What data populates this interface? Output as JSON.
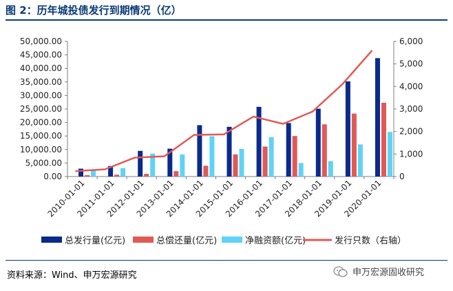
{
  "header": {
    "title": "图 2：历年城投债发行到期情况（亿）"
  },
  "footer": {
    "source": "资料来源：Wind、申万宏源研究",
    "watermark": "申万宏源固收研究"
  },
  "colors": {
    "title": "#0a3a78",
    "issue": "#0a2a8c",
    "repay": "#e05a55",
    "net": "#5fd3f6",
    "count": "#e05a55"
  },
  "chart_data": {
    "type": "bar",
    "categories": [
      "2010-01-01",
      "2011-01-01",
      "2012-01-01",
      "2013-01-01",
      "2014-01-01",
      "2015-01-01",
      "2016-01-01",
      "2017-01-01",
      "2018-01-01",
      "2019-01-01",
      "2020-01-01"
    ],
    "series": [
      {
        "name": "总发行量(亿元)",
        "type": "bar",
        "axis": "left",
        "values": [
          2900,
          3900,
          9500,
          10300,
          19000,
          18400,
          25800,
          19800,
          25100,
          35200,
          43800
        ]
      },
      {
        "name": "总偿还量(亿元)",
        "type": "bar",
        "axis": "left",
        "values": [
          500,
          700,
          1000,
          2000,
          4000,
          8200,
          11100,
          15000,
          19300,
          23300,
          27300
        ]
      },
      {
        "name": "净融资额(亿元)",
        "type": "bar",
        "axis": "left",
        "values": [
          2300,
          3100,
          8500,
          8200,
          14900,
          10200,
          14600,
          5000,
          5700,
          11900,
          16500
        ]
      },
      {
        "name": "发行只数（右轴）",
        "type": "line",
        "axis": "right",
        "values": [
          240,
          320,
          840,
          900,
          1850,
          1870,
          2660,
          2340,
          2890,
          4100,
          5600
        ]
      }
    ],
    "left_axis": {
      "ylim": [
        0,
        50000
      ],
      "ticks": [
        "0.00",
        "5,000.00",
        "10,000.00",
        "15,000.00",
        "20,000.00",
        "25,000.00",
        "30,000.00",
        "35,000.00",
        "40,000.00",
        "45,000.00",
        "50,000.00"
      ]
    },
    "right_axis": {
      "ylim": [
        0,
        6000
      ],
      "ticks": [
        "0",
        "1,000",
        "2,000",
        "3,000",
        "4,000",
        "5,000",
        "6,000"
      ]
    },
    "legend_position": "bottom",
    "grid": false
  }
}
